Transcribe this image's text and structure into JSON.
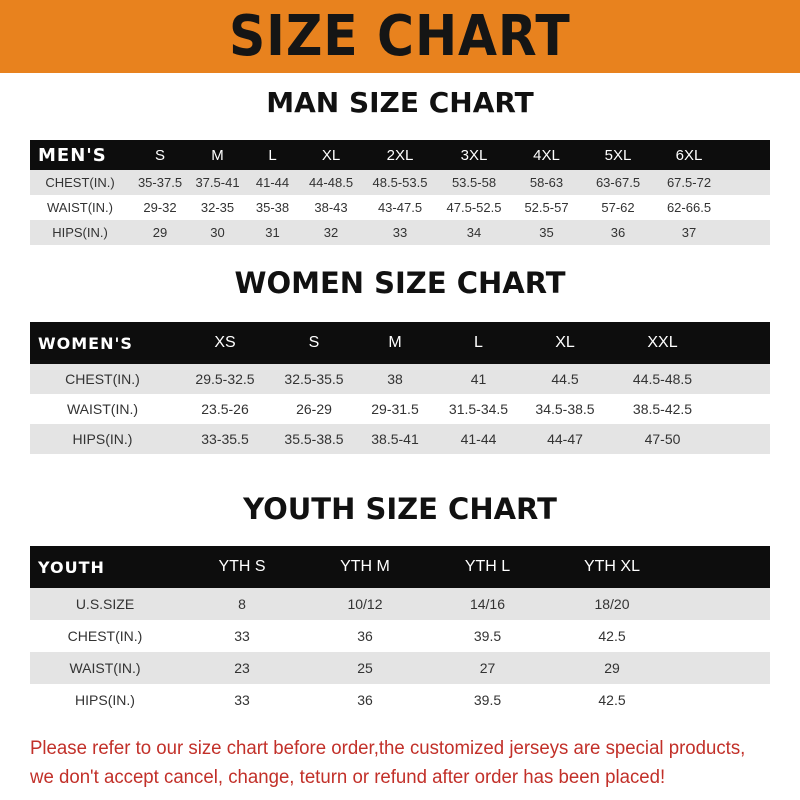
{
  "banner": {
    "title": "SIZE CHART",
    "color": "#e8821e"
  },
  "men": {
    "title": "MAN SIZE CHART",
    "header": [
      "MEN'S",
      "S",
      "M",
      "L",
      "XL",
      "2XL",
      "3XL",
      "4XL",
      "5XL",
      "6XL"
    ],
    "rows": [
      [
        "CHEST(IN.)",
        "35-37.5",
        "37.5-41",
        "41-44",
        "44-48.5",
        "48.5-53.5",
        "53.5-58",
        "58-63",
        "63-67.5",
        "67.5-72"
      ],
      [
        "WAIST(IN.)",
        "29-32",
        "32-35",
        "35-38",
        "38-43",
        "43-47.5",
        "47.5-52.5",
        "52.5-57",
        "57-62",
        "62-66.5"
      ],
      [
        "HIPS(IN.)",
        "29",
        "30",
        "31",
        "32",
        "33",
        "34",
        "35",
        "36",
        "37"
      ]
    ]
  },
  "women": {
    "title": "WOMEN SIZE CHART",
    "header": [
      "WOMEN'S",
      "XS",
      "S",
      "M",
      "L",
      "XL",
      "XXL"
    ],
    "rows": [
      [
        "CHEST(IN.)",
        "29.5-32.5",
        "32.5-35.5",
        "38",
        "41",
        "44.5",
        "44.5-48.5"
      ],
      [
        "WAIST(IN.)",
        "23.5-26",
        "26-29",
        "29-31.5",
        "31.5-34.5",
        "34.5-38.5",
        "38.5-42.5"
      ],
      [
        "HIPS(IN.)",
        "33-35.5",
        "35.5-38.5",
        "38.5-41",
        "41-44",
        "44-47",
        "47-50"
      ]
    ]
  },
  "youth": {
    "title": "YOUTH SIZE CHART",
    "header": [
      "YOUTH",
      "YTH S",
      "YTH M",
      "YTH L",
      "YTH XL"
    ],
    "rows": [
      [
        "U.S.SIZE",
        "8",
        "10/12",
        "14/16",
        "18/20"
      ],
      [
        "CHEST(IN.)",
        "33",
        "36",
        "39.5",
        "42.5"
      ],
      [
        "WAIST(IN.)",
        "23",
        "25",
        "27",
        "29"
      ],
      [
        "HIPS(IN.)",
        "33",
        "36",
        "39.5",
        "42.5"
      ]
    ]
  },
  "note": {
    "line1": "Please refer to our size chart before order,the customized jerseys are special products,",
    "line2": "we don't accept cancel, change, teturn or refund after order has been placed!",
    "color": "#c23029"
  }
}
